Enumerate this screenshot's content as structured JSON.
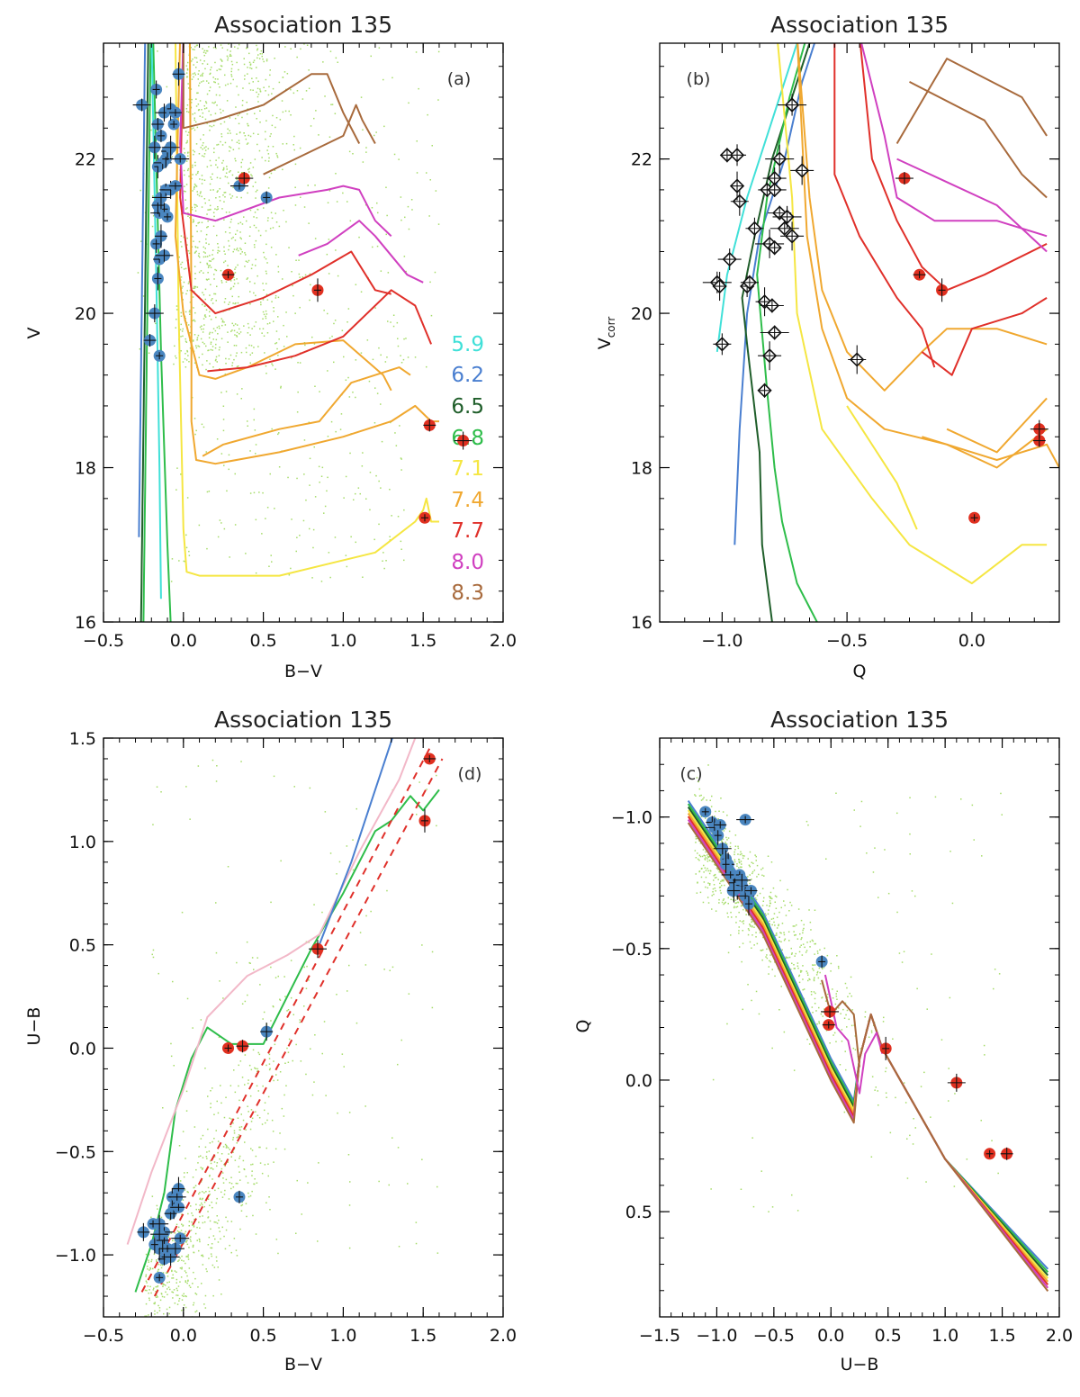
{
  "panels": [
    {
      "id": "a",
      "title": "Association 135",
      "tag": "(a)",
      "xlabel": "B−V",
      "ylabel": "V",
      "ylabel_sub": "",
      "xlim": [
        -0.5,
        2.0
      ],
      "ylim": [
        23.5,
        16.0
      ],
      "xticks": [
        -0.5,
        0.0,
        0.5,
        1.0,
        1.5,
        2.0
      ],
      "xtick_labels": [
        "−0.5",
        "0.0",
        "0.5",
        "1.0",
        "1.5",
        "2.0"
      ],
      "yticks": [
        16,
        18,
        20,
        22
      ],
      "ytick_labels": [
        "16",
        "18",
        "20",
        "22"
      ]
    },
    {
      "id": "b",
      "title": "Association 135",
      "tag": "(b)",
      "xlabel": "Q",
      "ylabel": "V",
      "ylabel_sub": "corr",
      "xlim": [
        -1.25,
        0.35
      ],
      "ylim": [
        23.5,
        16.0
      ],
      "xticks": [
        -1.0,
        -0.5,
        0.0
      ],
      "xtick_labels": [
        "−1.0",
        "−0.5",
        "0.0"
      ],
      "yticks": [
        16,
        18,
        20,
        22
      ],
      "ytick_labels": [
        "16",
        "18",
        "20",
        "22"
      ]
    },
    {
      "id": "d",
      "title": "Association 135",
      "tag": "(d)",
      "xlabel": "B−V",
      "ylabel": "U−B",
      "ylabel_sub": "",
      "xlim": [
        -0.5,
        2.0
      ],
      "ylim": [
        1.5,
        -1.3
      ],
      "xticks": [
        -0.5,
        0.0,
        0.5,
        1.0,
        1.5,
        2.0
      ],
      "xtick_labels": [
        "−0.5",
        "0.0",
        "0.5",
        "1.0",
        "1.5",
        "2.0"
      ],
      "yticks": [
        -1.0,
        -0.5,
        0.0,
        0.5,
        1.0,
        1.5
      ],
      "ytick_labels": [
        "−1.0",
        "−0.5",
        "0.0",
        "0.5",
        "1.0",
        "1.5"
      ]
    },
    {
      "id": "c",
      "title": "Association 135",
      "tag": "(c)",
      "xlabel": "U−B",
      "ylabel": "Q",
      "ylabel_sub": "",
      "xlim": [
        -1.5,
        2.0
      ],
      "ylim": [
        -1.3,
        0.9
      ],
      "xticks": [
        -1.5,
        -1.0,
        -0.5,
        0.0,
        0.5,
        1.0,
        1.5,
        2.0
      ],
      "xtick_labels": [
        "−1.5",
        "−1.0",
        "−0.5",
        "0.0",
        "0.5",
        "1.0",
        "1.5",
        "2.0"
      ],
      "yticks": [
        -1.0,
        -0.5,
        0.0,
        0.5
      ],
      "ytick_labels": [
        "−1.0",
        "−0.5",
        "0.0",
        "0.5"
      ]
    }
  ],
  "ages": [
    {
      "label": "5.9",
      "color": "#40e0d8"
    },
    {
      "label": "6.2",
      "color": "#4a7fd0"
    },
    {
      "label": "6.5",
      "color": "#1f5e2a"
    },
    {
      "label": "6.8",
      "color": "#2ebd4a"
    },
    {
      "label": "7.1",
      "color": "#f5e642"
    },
    {
      "label": "7.4",
      "color": "#f0a830"
    },
    {
      "label": "7.7",
      "color": "#e0302a"
    },
    {
      "label": "8.0",
      "color": "#d040c0"
    },
    {
      "label": "8.3",
      "color": "#a86a3c"
    }
  ],
  "chart_data": [
    {
      "type": "scatter",
      "panel": "a",
      "title": "Association 135",
      "xlabel": "B−V",
      "ylabel": "V",
      "xlim": [
        -0.5,
        2.0
      ],
      "ylim": [
        23.5,
        16.0
      ],
      "series": [
        {
          "name": "blue",
          "color": "#4a86c0",
          "x": [
            -0.15,
            -0.21,
            -0.18,
            -0.16,
            -0.15,
            -0.12,
            -0.17,
            -0.14,
            -0.15,
            -0.12,
            -0.16,
            -0.14,
            -0.1,
            -0.11,
            -0.08,
            -0.16,
            -0.05,
            -0.13,
            -0.11,
            -0.18,
            -0.02,
            -0.14,
            -0.1,
            -0.08,
            -0.06,
            -0.16,
            -0.12,
            -0.08,
            -0.05,
            -0.26,
            -0.17,
            -0.03,
            0.35,
            0.52
          ],
          "y": [
            19.45,
            19.65,
            20.0,
            20.45,
            20.7,
            20.75,
            20.9,
            21.0,
            21.3,
            21.35,
            21.4,
            21.5,
            21.25,
            21.6,
            21.6,
            21.9,
            21.65,
            21.95,
            22.0,
            22.15,
            22.0,
            22.3,
            22.1,
            22.15,
            22.45,
            22.45,
            22.6,
            22.65,
            22.6,
            22.7,
            22.9,
            23.1,
            21.65,
            21.5
          ]
        },
        {
          "name": "red",
          "color": "#e03020",
          "x": [
            1.51,
            1.54,
            1.75,
            0.84,
            0.28,
            0.38
          ],
          "y": [
            17.35,
            18.55,
            18.35,
            20.3,
            20.5,
            21.75
          ]
        }
      ]
    },
    {
      "type": "scatter",
      "panel": "b",
      "title": "Association 135",
      "xlabel": "Q",
      "ylabel": "V corr",
      "xlim": [
        -1.25,
        0.35
      ],
      "ylim": [
        23.5,
        16.0
      ],
      "series": [
        {
          "name": "black",
          "color": "#111111",
          "x": [
            -0.83,
            -1.0,
            -0.81,
            -0.79,
            -0.9,
            -0.83,
            -0.8,
            -1.02,
            -1.01,
            -0.89,
            -0.97,
            -0.81,
            -0.79,
            -0.87,
            -0.72,
            -0.75,
            -0.74,
            -0.93,
            -0.77,
            -0.74,
            -0.94,
            -0.82,
            -0.79,
            -0.77,
            -0.98,
            -0.94,
            -0.68,
            -0.72,
            -0.72,
            -0.46,
            -0.79
          ],
          "y": [
            19.0,
            19.6,
            19.45,
            19.75,
            20.35,
            20.15,
            20.1,
            20.4,
            20.35,
            20.4,
            20.7,
            20.9,
            20.85,
            21.1,
            21.0,
            21.1,
            21.25,
            21.45,
            21.3,
            21.25,
            21.65,
            21.6,
            21.75,
            22.0,
            22.05,
            22.05,
            21.85,
            22.7,
            22.7,
            19.4,
            21.6
          ]
        },
        {
          "name": "red",
          "color": "#e03020",
          "x": [
            0.01,
            0.27,
            0.27,
            -0.12,
            -0.21,
            -0.27
          ],
          "y": [
            17.35,
            18.35,
            18.5,
            20.3,
            20.5,
            21.75
          ]
        }
      ]
    },
    {
      "type": "scatter",
      "panel": "d",
      "title": "Association 135",
      "xlabel": "B−V",
      "ylabel": "U−B",
      "xlim": [
        -0.5,
        2.0
      ],
      "ylim": [
        1.5,
        -1.3
      ],
      "series": [
        {
          "name": "blue",
          "color": "#4a86c0",
          "x": [
            -0.15,
            -0.12,
            -0.08,
            -0.15,
            -0.1,
            -0.05,
            -0.18,
            -0.13,
            -0.02,
            -0.14,
            -0.25,
            -0.12,
            -0.19,
            -0.08,
            -0.15,
            -0.06,
            -0.03,
            -0.15,
            -0.07,
            -0.03,
            -0.04,
            0.35,
            0.52
          ],
          "y": [
            -1.11,
            -1.02,
            -1.01,
            -0.97,
            -0.97,
            -0.97,
            -0.95,
            -0.93,
            -0.92,
            -0.9,
            -0.89,
            -0.89,
            -0.85,
            -0.8,
            -0.85,
            -0.77,
            -0.77,
            -0.9,
            -0.72,
            -0.68,
            -0.72,
            -0.72,
            0.08
          ]
        },
        {
          "name": "red",
          "color": "#e03020",
          "x": [
            0.28,
            0.37,
            0.84,
            1.51,
            1.54
          ],
          "y": [
            0.0,
            0.01,
            0.48,
            1.1,
            1.4
          ]
        }
      ]
    },
    {
      "type": "scatter",
      "panel": "c",
      "title": "Association 135",
      "xlabel": "U−B",
      "ylabel": "Q",
      "xlim": [
        -1.5,
        2.0
      ],
      "ylim": [
        -1.3,
        0.9
      ],
      "series": [
        {
          "name": "blue",
          "color": "#4a86c0",
          "x": [
            -1.1,
            -1.04,
            -1.02,
            -0.99,
            -0.97,
            -0.95,
            -0.92,
            -0.9,
            -0.88,
            -0.86,
            -0.84,
            -0.82,
            -0.8,
            -0.78,
            -0.75,
            -0.72,
            -0.7,
            -0.78,
            -0.92,
            -0.85,
            -0.75,
            -0.08
          ],
          "y": [
            -1.02,
            -0.98,
            -0.96,
            -0.93,
            -0.97,
            -0.88,
            -0.84,
            -0.82,
            -0.78,
            -0.72,
            -0.75,
            -0.73,
            -0.78,
            -0.74,
            -0.7,
            -0.67,
            -0.72,
            -0.76,
            -0.82,
            -0.72,
            -0.99,
            -0.45
          ]
        },
        {
          "name": "red",
          "color": "#e03020",
          "x": [
            1.39,
            1.54,
            1.1,
            0.48,
            -0.02,
            -0.01
          ],
          "y": [
            0.28,
            0.28,
            0.01,
            -0.12,
            -0.21,
            -0.26
          ]
        }
      ]
    }
  ]
}
